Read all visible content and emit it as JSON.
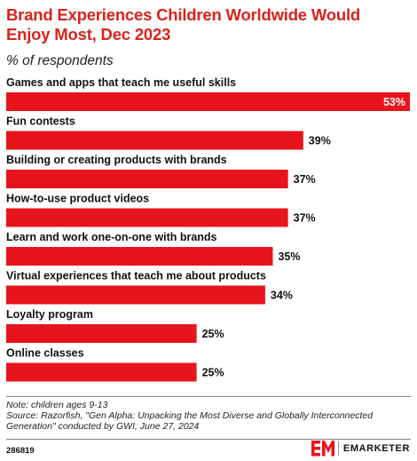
{
  "header": {
    "title": "Brand Experiences Children Worldwide Would Enjoy Most, Dec 2023",
    "subtitle": "% of respondents"
  },
  "chart_data": {
    "type": "bar",
    "orientation": "horizontal",
    "categories": [
      "Games and apps that teach me useful skills",
      "Fun contests",
      "Building or creating products with brands",
      "How-to-use product videos",
      "Learn and work one-on-one with brands",
      "Virtual experiences that teach me about products",
      "Loyalty program",
      "Online classes"
    ],
    "values": [
      53,
      39,
      37,
      37,
      35,
      34,
      25,
      25
    ],
    "value_labels": [
      "53%",
      "39%",
      "37%",
      "37%",
      "35%",
      "34%",
      "25%",
      "25%"
    ],
    "bar_color": "#e8141c",
    "xlim": [
      0,
      53
    ],
    "grid": false,
    "legend": "none"
  },
  "footer": {
    "note": "Note: children ages 9-13",
    "source": "Source: Razorfish, \"Gen Alpha: Unpacking the Most Diverse and Globally Interconnected Generation\" conducted by GWI, June 27, 2024",
    "chart_id": "286819",
    "brand": "EMARKETER"
  },
  "colors": {
    "title": "#d9231d",
    "bar": "#e8141c",
    "brand_mark": "#e8141c"
  }
}
